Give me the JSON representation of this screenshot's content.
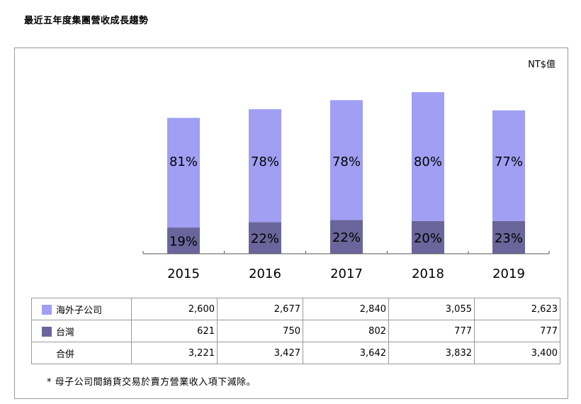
{
  "page_title": "最近五年度集團營收成長趨勢",
  "unit_label": "NT$億",
  "colors": {
    "overseas": "#a09ff4",
    "taiwan": "#6a669b",
    "frame": "#9a9a9a"
  },
  "chart_data": {
    "type": "bar",
    "stacked": true,
    "categories": [
      "2015",
      "2016",
      "2017",
      "2018",
      "2019"
    ],
    "series": [
      {
        "name": "台灣",
        "values": [
          621,
          750,
          802,
          777,
          777
        ],
        "labels": [
          "19%",
          "22%",
          "22%",
          "20%",
          "23%"
        ]
      },
      {
        "name": "海外子公司",
        "values": [
          2600,
          2677,
          2840,
          3055,
          2623
        ],
        "labels": [
          "81%",
          "78%",
          "78%",
          "80%",
          "77%"
        ]
      }
    ],
    "totals": [
      3221,
      3427,
      3642,
      3832,
      3400
    ],
    "ylim": [
      0,
      3832
    ],
    "grid": false,
    "legend": "table-below"
  },
  "table": {
    "rows": [
      {
        "label": "海外子公司",
        "swatch": "overseas",
        "cells": [
          "2,600",
          "2,677",
          "2,840",
          "3,055",
          "2,623"
        ]
      },
      {
        "label": "台灣",
        "swatch": "taiwan",
        "cells": [
          "621",
          "750",
          "802",
          "777",
          "777"
        ]
      },
      {
        "label": "合併",
        "swatch": "",
        "cells": [
          "3,221",
          "3,427",
          "3,642",
          "3,832",
          "3,400"
        ]
      }
    ]
  },
  "footnote": "*  母子公司間銷貨交易於賣方營業收入項下減除。"
}
